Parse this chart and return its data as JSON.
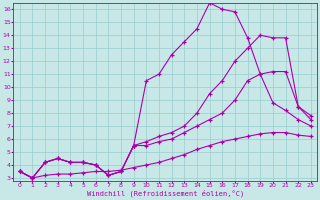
{
  "xlabel": "Windchill (Refroidissement éolien,°C)",
  "xlim": [
    -0.5,
    23.5
  ],
  "ylim": [
    2.8,
    16.5
  ],
  "xticks": [
    0,
    1,
    2,
    3,
    4,
    5,
    6,
    7,
    8,
    9,
    10,
    11,
    12,
    13,
    14,
    15,
    16,
    17,
    18,
    19,
    20,
    21,
    22,
    23
  ],
  "yticks": [
    3,
    4,
    5,
    6,
    7,
    8,
    9,
    10,
    11,
    12,
    13,
    14,
    15,
    16
  ],
  "background_color": "#c8e8e8",
  "line_color": "#aa00aa",
  "grid_color": "#99cccc",
  "lines": [
    {
      "x": [
        0,
        1,
        2,
        3,
        4,
        5,
        6,
        7,
        8,
        9,
        10,
        11,
        12,
        13,
        14,
        15,
        16,
        17,
        18,
        19,
        20,
        21,
        22,
        23
      ],
      "y": [
        3.5,
        3.0,
        3.2,
        3.3,
        3.3,
        3.4,
        3.5,
        3.5,
        3.6,
        3.8,
        4.0,
        4.2,
        4.5,
        4.8,
        5.2,
        5.5,
        5.8,
        6.0,
        6.2,
        6.4,
        6.5,
        6.5,
        6.3,
        6.2
      ]
    },
    {
      "x": [
        0,
        1,
        2,
        3,
        4,
        5,
        6,
        7,
        8,
        9,
        10,
        11,
        12,
        13,
        14,
        15,
        16,
        17,
        18,
        19,
        20,
        21,
        22,
        23
      ],
      "y": [
        3.5,
        3.0,
        4.2,
        4.5,
        4.2,
        4.2,
        4.0,
        3.2,
        3.5,
        5.5,
        5.5,
        5.8,
        6.0,
        6.5,
        7.0,
        7.5,
        8.0,
        9.0,
        10.5,
        11.0,
        11.2,
        11.2,
        8.5,
        7.8
      ]
    },
    {
      "x": [
        0,
        1,
        2,
        3,
        4,
        5,
        6,
        7,
        8,
        9,
        10,
        11,
        12,
        13,
        14,
        15,
        16,
        17,
        18,
        19,
        20,
        21,
        22,
        23
      ],
      "y": [
        3.5,
        3.0,
        4.2,
        4.5,
        4.2,
        4.2,
        4.0,
        3.2,
        3.5,
        5.5,
        5.8,
        6.2,
        6.5,
        7.0,
        8.0,
        9.5,
        10.5,
        12.0,
        13.0,
        14.0,
        13.8,
        13.8,
        8.5,
        7.5
      ]
    },
    {
      "x": [
        0,
        1,
        2,
        3,
        4,
        5,
        6,
        7,
        8,
        9,
        10,
        11,
        12,
        13,
        14,
        15,
        16,
        17,
        18,
        19,
        20,
        21,
        22,
        23
      ],
      "y": [
        3.5,
        3.0,
        4.2,
        4.5,
        4.2,
        4.2,
        4.0,
        3.2,
        3.5,
        5.5,
        10.5,
        11.0,
        12.5,
        13.5,
        14.5,
        16.5,
        16.0,
        15.8,
        13.8,
        11.0,
        8.8,
        8.2,
        7.5,
        7.0
      ]
    }
  ]
}
